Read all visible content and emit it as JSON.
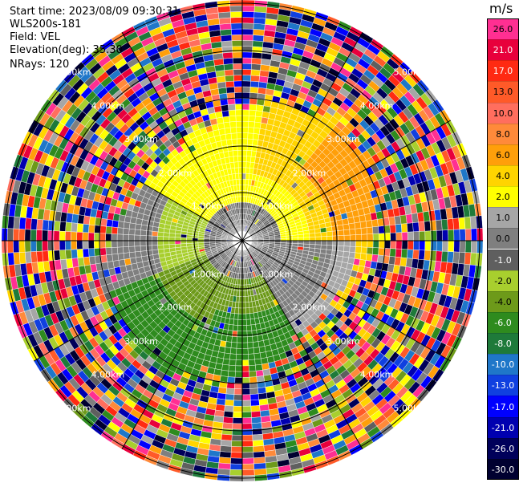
{
  "header": {
    "start_time": "Start time: 2023/08/09 09:30:31",
    "instrument": "WLS200s-181",
    "field": "Field: VEL",
    "elevation": "Elevation(deg): 35.30",
    "nrays": "NRays: 120"
  },
  "range_rings": {
    "labels": [
      "1.00km",
      "2.00km",
      "3.00km",
      "4.00km",
      "5.00km"
    ]
  },
  "colorbar": {
    "unit": "m/s",
    "levels": [
      {
        "label": "26.0",
        "color": "#ff2f92"
      },
      {
        "label": "21.0",
        "color": "#e8003c"
      },
      {
        "label": "17.0",
        "color": "#ff2a12"
      },
      {
        "label": "13.0",
        "color": "#ff5a28"
      },
      {
        "label": "10.0",
        "color": "#ff6e5e"
      },
      {
        "label": "8.0",
        "color": "#ff8a3a"
      },
      {
        "label": "6.0",
        "color": "#ff9f0a"
      },
      {
        "label": "4.0",
        "color": "#ffd400"
      },
      {
        "label": "2.0",
        "color": "#ffff00"
      },
      {
        "label": "1.0",
        "color": "#a6a6a6"
      },
      {
        "label": "0.0",
        "color": "#7f7f7f"
      },
      {
        "label": "-1.0",
        "color": "#5f5f5f"
      },
      {
        "label": "-2.0",
        "color": "#a8cf2e"
      },
      {
        "label": "-4.0",
        "color": "#6d9a1a"
      },
      {
        "label": "-6.0",
        "color": "#2e8b1e"
      },
      {
        "label": "-8.0",
        "color": "#1e7a3a"
      },
      {
        "label": "-10.0",
        "color": "#1f77c9"
      },
      {
        "label": "-13.0",
        "color": "#1040e0"
      },
      {
        "label": "-17.0",
        "color": "#0000ff"
      },
      {
        "label": "-21.0",
        "color": "#0000b0"
      },
      {
        "label": "-26.0",
        "color": "#00005a"
      },
      {
        "label": "-30.0",
        "color": "#000030"
      }
    ]
  }
}
